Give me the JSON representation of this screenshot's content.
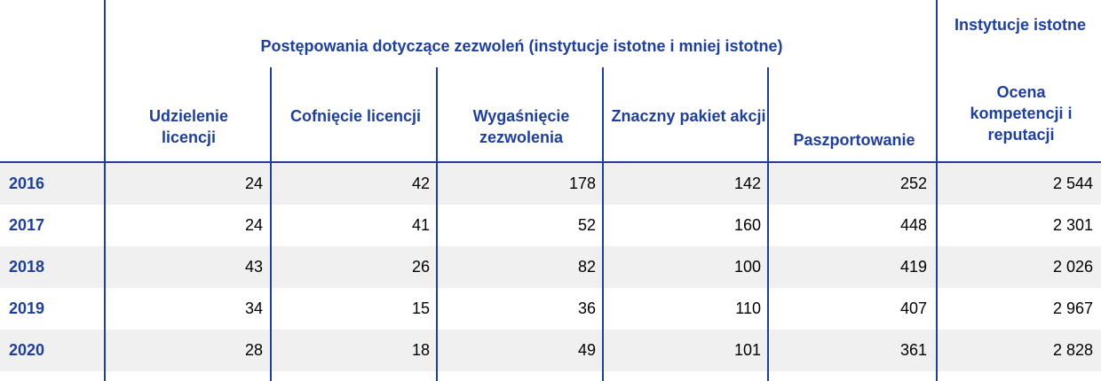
{
  "chart_data": {
    "type": "table",
    "group_header": "Postępowania dotyczące zezwoleń (instytucje istotne i mniej istotne)",
    "side_group_header": "Instytucje istotne",
    "columns": [
      "Udzielenie licencji",
      "Cofnięcie licencji",
      "Wygaśnięcie zezwolenia",
      "Znaczny pakiet akcji",
      "Paszportowanie",
      "Ocena kompetencji i reputacji"
    ],
    "rows": [
      {
        "year": "2016",
        "values": [
          "24",
          "42",
          "178",
          "142",
          "252",
          "2 544"
        ]
      },
      {
        "year": "2017",
        "values": [
          "24",
          "41",
          "52",
          "160",
          "448",
          "2 301"
        ]
      },
      {
        "year": "2018",
        "values": [
          "43",
          "26",
          "82",
          "100",
          "419",
          "2 026"
        ]
      },
      {
        "year": "2019",
        "values": [
          "34",
          "15",
          "36",
          "110",
          "407",
          "2 967"
        ]
      },
      {
        "year": "2020",
        "values": [
          "28",
          "18",
          "49",
          "101",
          "361",
          "2 828"
        ]
      }
    ]
  },
  "colors": {
    "header_text": "#1f3f99",
    "lines": "#1f3f99",
    "row_shade": "#f0f0f0"
  }
}
